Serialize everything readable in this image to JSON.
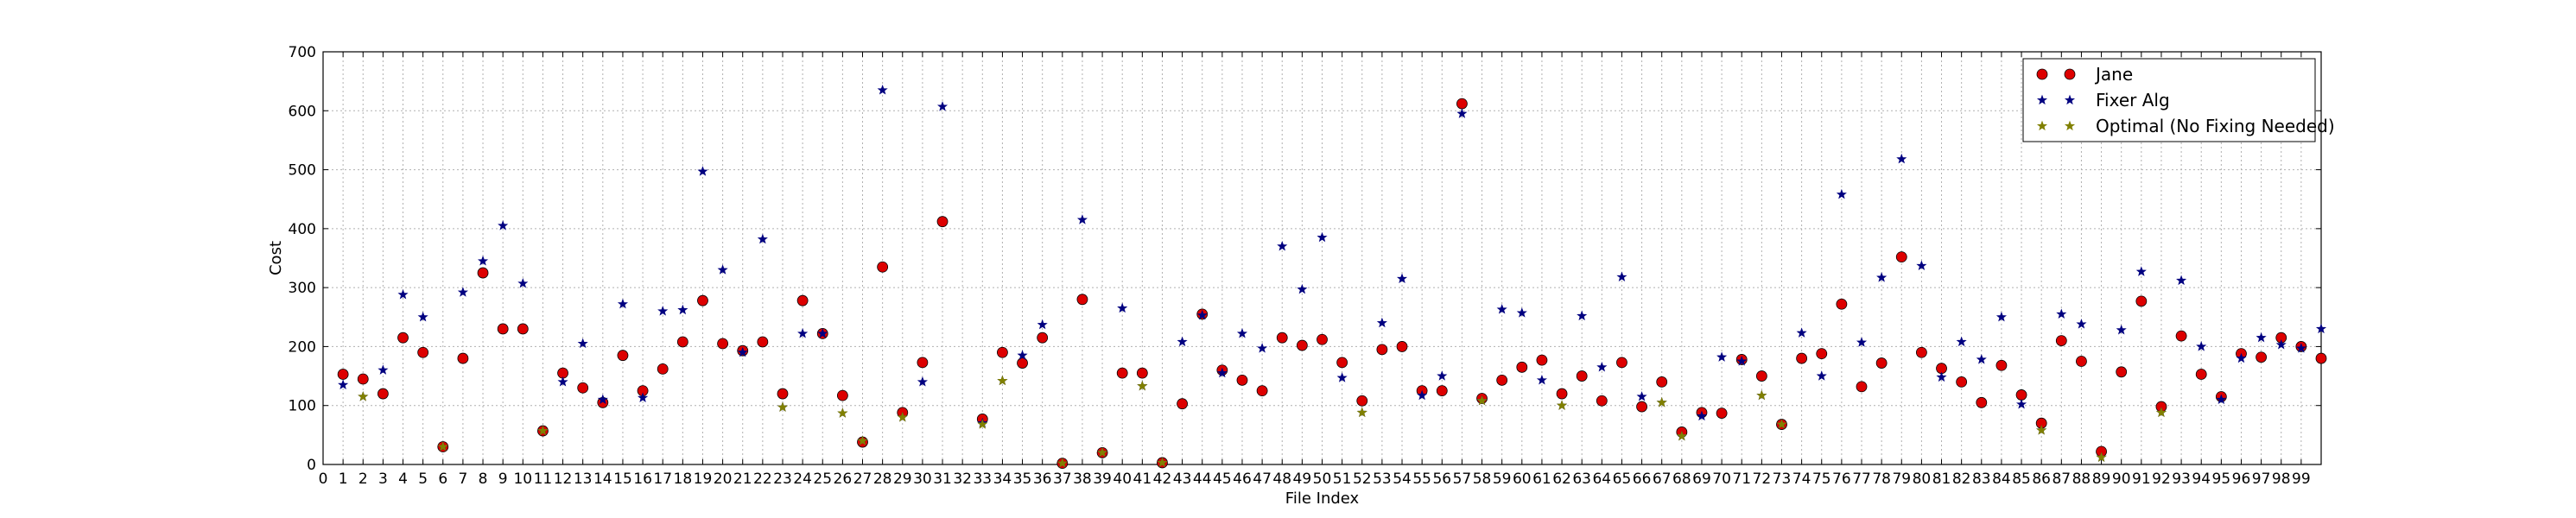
{
  "chart_data": {
    "type": "scatter",
    "title": "",
    "xlabel": "File Index",
    "ylabel": "Cost",
    "xlim": [
      0,
      100
    ],
    "ylim": [
      0,
      700
    ],
    "xticks": [
      0,
      1,
      2,
      3,
      4,
      5,
      6,
      7,
      8,
      9,
      10,
      11,
      12,
      13,
      14,
      15,
      16,
      17,
      18,
      19,
      20,
      21,
      22,
      23,
      24,
      25,
      26,
      27,
      28,
      29,
      30,
      31,
      32,
      33,
      34,
      35,
      36,
      37,
      38,
      39,
      40,
      41,
      42,
      43,
      44,
      45,
      46,
      47,
      48,
      49,
      50,
      51,
      52,
      53,
      54,
      55,
      56,
      57,
      58,
      59,
      60,
      61,
      62,
      63,
      64,
      65,
      66,
      67,
      68,
      69,
      70,
      71,
      72,
      73,
      74,
      75,
      76,
      77,
      78,
      79,
      80,
      81,
      82,
      83,
      84,
      85,
      86,
      87,
      88,
      89,
      90,
      91,
      92,
      93,
      94,
      95,
      96,
      97,
      98,
      99
    ],
    "yticks": [
      0,
      100,
      200,
      300,
      400,
      500,
      600,
      700
    ],
    "grid": true,
    "legend_position": "top-right",
    "x": [
      1,
      2,
      3,
      4,
      5,
      6,
      7,
      8,
      9,
      10,
      11,
      12,
      13,
      14,
      15,
      16,
      17,
      18,
      19,
      20,
      21,
      22,
      23,
      24,
      25,
      26,
      27,
      28,
      29,
      30,
      31,
      32,
      33,
      34,
      35,
      36,
      37,
      38,
      39,
      40,
      41,
      42,
      43,
      44,
      45,
      46,
      47,
      48,
      49,
      50,
      51,
      52,
      53,
      54,
      55,
      56,
      57,
      58,
      59,
      60,
      61,
      62,
      63,
      64,
      65,
      66,
      67,
      68,
      69,
      70,
      71,
      72,
      73,
      74,
      75,
      76,
      77,
      78,
      79,
      80,
      81,
      82,
      83,
      84,
      85,
      86,
      87,
      88,
      89,
      90,
      91,
      92,
      93,
      94,
      95,
      96,
      97,
      98,
      99,
      100
    ],
    "series": [
      {
        "name": "Jane",
        "marker": "circle",
        "color": "#dd0000",
        "values": [
          153,
          145,
          120,
          215,
          190,
          30,
          180,
          325,
          230,
          230,
          57,
          155,
          130,
          105,
          185,
          125,
          162,
          208,
          278,
          205,
          193,
          208,
          120,
          278,
          222,
          117,
          38,
          335,
          88,
          173,
          412,
          null,
          77,
          190,
          172,
          215,
          2,
          280,
          20,
          155,
          155,
          3,
          103,
          255,
          160,
          143,
          125,
          215,
          202,
          212,
          173,
          108,
          195,
          200,
          125,
          125,
          612,
          112,
          143,
          165,
          177,
          120,
          150,
          108,
          173,
          98,
          140,
          55,
          88,
          87,
          178,
          150,
          68,
          180,
          188,
          272,
          132,
          172,
          352,
          190,
          163,
          140,
          105,
          168,
          118,
          70,
          210,
          175,
          22,
          157,
          277,
          98,
          218,
          153,
          115,
          188,
          182,
          215,
          200,
          180
        ]
      },
      {
        "name": "Fixer Alg",
        "marker": "star",
        "color": "#000080",
        "values": [
          135,
          115,
          160,
          288,
          250,
          30,
          292,
          345,
          405,
          307,
          57,
          140,
          205,
          110,
          272,
          113,
          260,
          262,
          497,
          330,
          190,
          382,
          97,
          222,
          222,
          87,
          40,
          635,
          80,
          140,
          607,
          null,
          70,
          142,
          185,
          237,
          2,
          415,
          20,
          265,
          133,
          3,
          208,
          253,
          155,
          222,
          197,
          370,
          297,
          385,
          147,
          88,
          240,
          315,
          117,
          150,
          595,
          108,
          263,
          257,
          143,
          100,
          252,
          165,
          318,
          115,
          105,
          48,
          82,
          182,
          175,
          117,
          68,
          223,
          150,
          458,
          207,
          317,
          518,
          337,
          148,
          208,
          178,
          250,
          102,
          58,
          255,
          238,
          12,
          228,
          327,
          88,
          312,
          200,
          110,
          180,
          215,
          203,
          197,
          230
        ]
      },
      {
        "name": "Optimal (No Fixing Needed)",
        "marker": "star",
        "color": "#808000",
        "values": [
          null,
          115,
          null,
          null,
          null,
          30,
          null,
          null,
          null,
          null,
          57,
          null,
          null,
          null,
          null,
          null,
          null,
          null,
          null,
          null,
          null,
          null,
          97,
          null,
          null,
          87,
          40,
          null,
          80,
          null,
          null,
          null,
          68,
          142,
          null,
          null,
          2,
          null,
          20,
          null,
          133,
          3,
          null,
          null,
          null,
          null,
          null,
          null,
          null,
          null,
          null,
          88,
          null,
          null,
          null,
          null,
          null,
          108,
          null,
          null,
          null,
          100,
          null,
          null,
          null,
          null,
          105,
          48,
          null,
          null,
          null,
          117,
          68,
          null,
          null,
          null,
          null,
          null,
          null,
          null,
          null,
          null,
          null,
          null,
          null,
          58,
          null,
          null,
          12,
          null,
          null,
          88,
          null,
          null,
          null,
          null,
          null,
          null,
          null,
          null
        ]
      }
    ]
  }
}
